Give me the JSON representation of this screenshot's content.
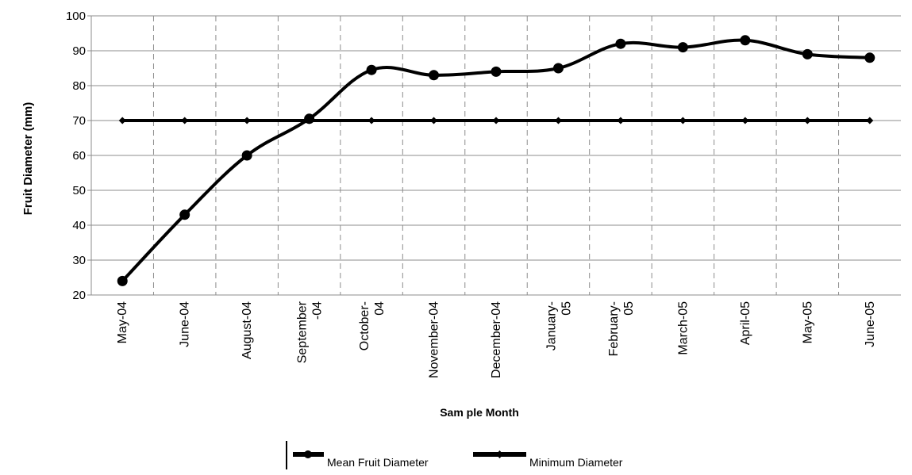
{
  "chart_data": {
    "type": "line",
    "title": "",
    "xlabel": "Sam ple Month",
    "ylabel": "Fruit Diameter (mm)",
    "ylim": [
      20,
      100
    ],
    "yticks": [
      "20",
      "30",
      "40",
      "50",
      "60",
      "70",
      "80",
      "90",
      "100"
    ],
    "categories": [
      "May-04",
      "June-04",
      "August-04",
      "September -04",
      "October- 04",
      "November-04",
      "December-04",
      "January- 05",
      "February- 05",
      "March-05",
      "April-05",
      "May-05",
      "June-05"
    ],
    "category_labels": [
      [
        "May-04"
      ],
      [
        "June-04"
      ],
      [
        "August-04"
      ],
      [
        "September",
        "-04"
      ],
      [
        "October-",
        "04"
      ],
      [
        "November-04"
      ],
      [
        "December-04"
      ],
      [
        "January-",
        "05"
      ],
      [
        "February-",
        "05"
      ],
      [
        "March-05"
      ],
      [
        "April-05"
      ],
      [
        "May-05"
      ],
      [
        "June-05"
      ]
    ],
    "series": [
      {
        "name": "Mean Fruit Diameter",
        "values": [
          24,
          43,
          60,
          70.5,
          84.5,
          83,
          84,
          85,
          92,
          91,
          93,
          89,
          88
        ],
        "color": "#000000",
        "marker": "circle",
        "smooth": true
      },
      {
        "name": "Minimum Diameter",
        "values": [
          70,
          70,
          70,
          70,
          70,
          70,
          70,
          70,
          70,
          70,
          70,
          70,
          70
        ],
        "color": "#000000",
        "marker": "diamond",
        "smooth": false
      }
    ],
    "grid": {
      "horizontal": true,
      "vertical_dashed": true
    },
    "legend_position": "bottom"
  }
}
